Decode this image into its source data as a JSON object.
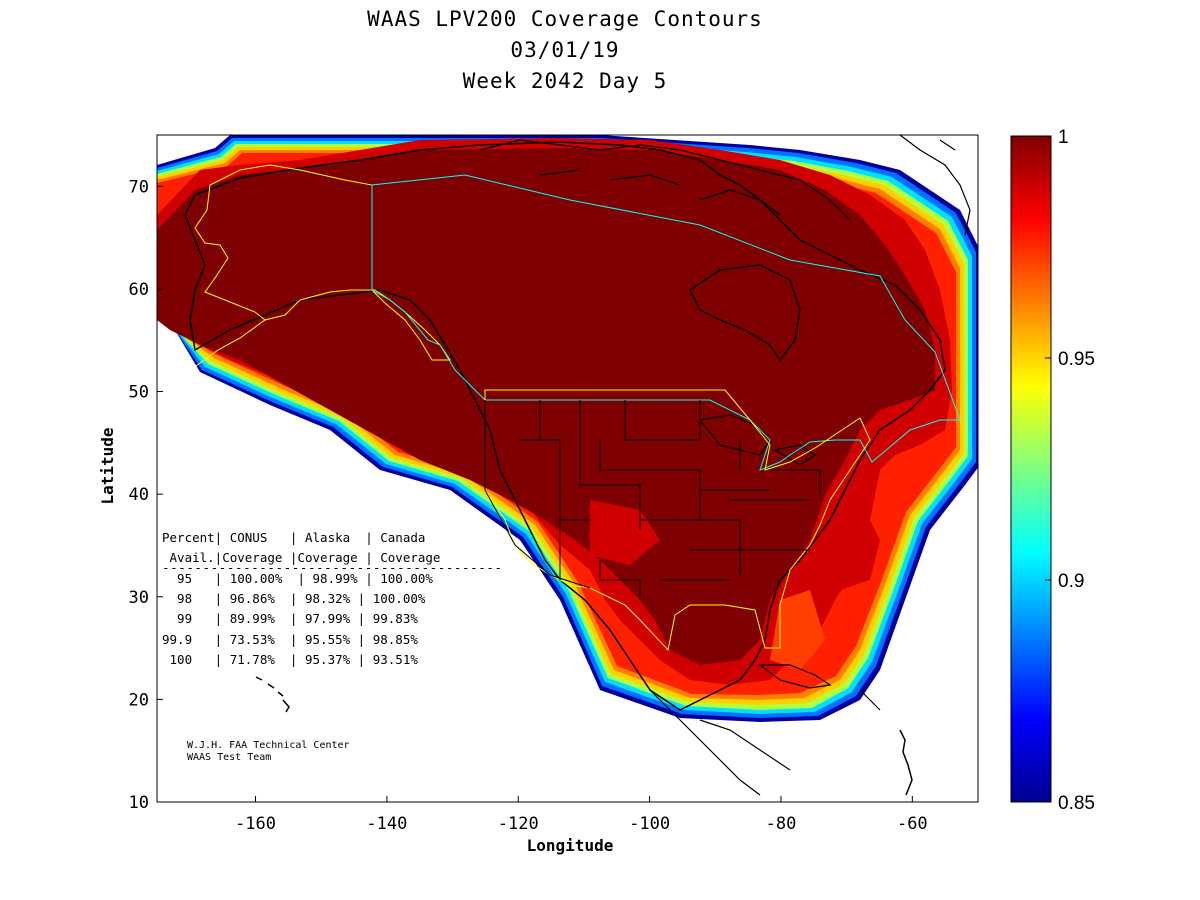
{
  "title": {
    "line1": "WAAS LPV200 Coverage Contours",
    "line2": "03/01/19",
    "line3": "Week 2042 Day 5"
  },
  "map": {
    "xlabel": "Longitude",
    "ylabel": "Latitude",
    "xlim": [
      -175,
      -50
    ],
    "ylim": [
      10,
      75
    ],
    "xticks": [
      "-160",
      "-140",
      "-120",
      "-100",
      "-80",
      "-60"
    ],
    "yticks": [
      "70",
      "60",
      "50",
      "40",
      "30",
      "20",
      "10"
    ],
    "xtick_values": [
      -160,
      -140,
      -120,
      -100,
      -80,
      -60
    ],
    "ytick_values": [
      70,
      60,
      50,
      40,
      30,
      20,
      10
    ]
  },
  "colorbar": {
    "range": [
      0.85,
      1.0
    ],
    "ticks": [
      "1",
      "0.95",
      "0.9",
      "0.85"
    ],
    "tick_values": [
      1.0,
      0.95,
      0.9,
      0.85
    ],
    "colormap": "jet",
    "colors": [
      "#00008f",
      "#0000ff",
      "#00ffff",
      "#ffff00",
      "#ff0000",
      "#7f0000"
    ]
  },
  "table": {
    "header1": "Percent| CONUS   | Alaska  | Canada",
    "header2": " Avail.|Coverage |Coverage | Coverage",
    "separator": "------------------------------------------",
    "rows": [
      "  95   | 100.00%  | 98.99% | 100.00%",
      "  98   | 96.86%  | 98.32% | 100.00%",
      "  99   | 89.99%  | 97.99% | 99.83%",
      "99.9   | 73.53%  | 95.55% | 98.85%",
      " 100   | 71.78%  | 95.37% | 93.51%"
    ]
  },
  "credit": {
    "line1": "W.J.H. FAA Technical Center",
    "line2": "WAAS Test Team"
  },
  "region_colors": {
    "alaska_boundary": "#ffff00",
    "conus_boundary": "#ffff00",
    "canada_boundary": "#00ffff",
    "coastline": "#000000"
  }
}
